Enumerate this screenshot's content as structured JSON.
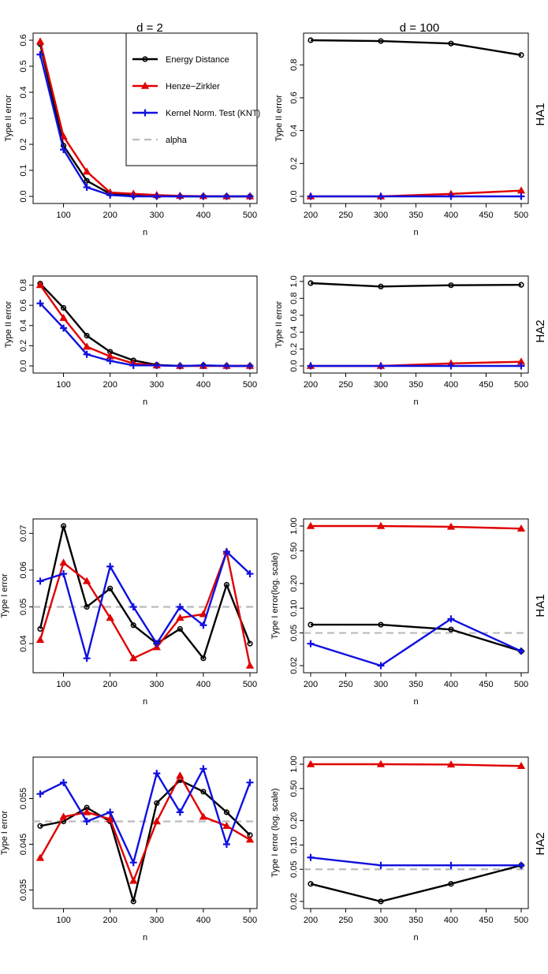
{
  "column_titles": [
    "d = 2",
    "d = 100"
  ],
  "row_labels": [
    "HA1",
    "HA2",
    "HA1",
    "HA2"
  ],
  "colors": {
    "energy": "#000000",
    "hz": "#e00000",
    "knt": "#1010e0",
    "alpha": "#bbbbbb"
  },
  "legend": {
    "entries": [
      {
        "key": "energy",
        "label": "Energy Distance",
        "marker": "circle"
      },
      {
        "key": "hz",
        "label": "Henze−Zirkler",
        "marker": "triangle"
      },
      {
        "key": "knt",
        "label": "Kernel Norm. Test (KNT)",
        "marker": "plus"
      },
      {
        "key": "alpha",
        "label": "alpha",
        "marker": "dash"
      }
    ]
  },
  "chart_data": [
    {
      "type": "line",
      "panel": "r0c0",
      "xlabel": "n",
      "ylabel": "Type II error",
      "xlim": [
        50,
        500
      ],
      "ylim": [
        0,
        0.6
      ],
      "log": false,
      "xticks": [
        100,
        200,
        300,
        400,
        500
      ],
      "xtick_labels": [
        "100",
        "200",
        "300",
        "400",
        "500"
      ],
      "yticks": [
        0,
        0.1,
        0.2,
        0.3,
        0.4,
        0.5,
        0.6
      ],
      "ytick_labels": [
        "0.0",
        "0.1",
        "0.2",
        "0.3",
        "0.4",
        "0.5",
        "0.6"
      ],
      "alpha_line": null,
      "has_legend": true,
      "x": [
        50,
        100,
        150,
        200,
        250,
        300,
        350,
        400,
        450,
        500
      ],
      "series": [
        {
          "key": "energy",
          "values": [
            0.585,
            0.195,
            0.06,
            0.01,
            0.003,
            0.001,
            0,
            0,
            0,
            0
          ]
        },
        {
          "key": "hz",
          "values": [
            0.595,
            0.23,
            0.095,
            0.015,
            0.01,
            0.005,
            0.002,
            0.001,
            0,
            0
          ]
        },
        {
          "key": "knt",
          "values": [
            0.545,
            0.18,
            0.035,
            0.005,
            0,
            0,
            0,
            0,
            0,
            0
          ]
        }
      ]
    },
    {
      "type": "line",
      "panel": "r0c1",
      "xlabel": "n",
      "ylabel": "Type II error",
      "xlim": [
        200,
        500
      ],
      "ylim": [
        0,
        0.95
      ],
      "log": false,
      "xticks": [
        200,
        250,
        300,
        350,
        400,
        450,
        500
      ],
      "xtick_labels": [
        "200",
        "250",
        "300",
        "350",
        "400",
        "450",
        "500"
      ],
      "yticks": [
        0,
        0.2,
        0.4,
        0.6,
        0.8
      ],
      "ytick_labels": [
        "0.0",
        "0.2",
        "0.4",
        "0.6",
        "0.8"
      ],
      "alpha_line": null,
      "has_legend": false,
      "x": [
        200,
        300,
        400,
        500
      ],
      "series": [
        {
          "key": "energy",
          "values": [
            0.95,
            0.945,
            0.93,
            0.86
          ]
        },
        {
          "key": "hz",
          "values": [
            0,
            0,
            0.015,
            0.035
          ]
        },
        {
          "key": "knt",
          "values": [
            0,
            0,
            0,
            0
          ]
        }
      ]
    },
    {
      "type": "line",
      "panel": "r1c0",
      "xlabel": "n",
      "ylabel": "Type II error",
      "xlim": [
        50,
        500
      ],
      "ylim": [
        0,
        0.82
      ],
      "log": false,
      "xticks": [
        100,
        200,
        300,
        400,
        500
      ],
      "xtick_labels": [
        "100",
        "200",
        "300",
        "400",
        "500"
      ],
      "yticks": [
        0,
        0.2,
        0.4,
        0.6,
        0.8
      ],
      "ytick_labels": [
        "0.0",
        "0.2",
        "0.4",
        "0.6",
        "0.8"
      ],
      "alpha_line": null,
      "has_legend": false,
      "x": [
        50,
        100,
        150,
        200,
        250,
        300,
        350,
        400,
        450,
        500
      ],
      "series": [
        {
          "key": "energy",
          "values": [
            0.815,
            0.575,
            0.3,
            0.14,
            0.055,
            0.01,
            0,
            0.005,
            0,
            0
          ]
        },
        {
          "key": "hz",
          "values": [
            0.8,
            0.475,
            0.19,
            0.095,
            0.025,
            0.005,
            0,
            0,
            0,
            0
          ]
        },
        {
          "key": "knt",
          "values": [
            0.62,
            0.375,
            0.115,
            0.05,
            0.005,
            0.005,
            0,
            0.005,
            0,
            0
          ]
        }
      ]
    },
    {
      "type": "line",
      "panel": "r1c1",
      "xlabel": "n",
      "ylabel": "Type II error",
      "xlim": [
        200,
        500
      ],
      "ylim": [
        0,
        0.98
      ],
      "log": false,
      "xticks": [
        200,
        250,
        300,
        350,
        400,
        450,
        500
      ],
      "xtick_labels": [
        "200",
        "250",
        "300",
        "350",
        "400",
        "450",
        "500"
      ],
      "yticks": [
        0,
        0.2,
        0.4,
        0.6,
        0.8,
        1.0
      ],
      "ytick_labels": [
        "0.0",
        "0.2",
        "0.4",
        "0.6",
        "0.8",
        "1.0"
      ],
      "alpha_line": null,
      "has_legend": false,
      "x": [
        200,
        300,
        400,
        500
      ],
      "series": [
        {
          "key": "energy",
          "values": [
            0.98,
            0.94,
            0.955,
            0.96
          ]
        },
        {
          "key": "hz",
          "values": [
            0,
            0,
            0.03,
            0.05
          ]
        },
        {
          "key": "knt",
          "values": [
            0,
            0,
            0,
            0
          ]
        }
      ]
    },
    {
      "type": "line",
      "panel": "r2c0",
      "xlabel": "n",
      "ylabel": "Type I error",
      "xlim": [
        50,
        500
      ],
      "ylim": [
        0.034,
        0.072
      ],
      "log": false,
      "xticks": [
        100,
        200,
        300,
        400,
        500
      ],
      "xtick_labels": [
        "100",
        "200",
        "300",
        "400",
        "500"
      ],
      "yticks": [
        0.04,
        0.05,
        0.06,
        0.07
      ],
      "ytick_labels": [
        "0.04",
        "0.05",
        "0.06",
        "0.07"
      ],
      "alpha_line": 0.05,
      "has_legend": false,
      "x": [
        50,
        100,
        150,
        200,
        250,
        300,
        350,
        400,
        450,
        500
      ],
      "series": [
        {
          "key": "energy",
          "values": [
            0.044,
            0.072,
            0.05,
            0.055,
            0.045,
            0.04,
            0.044,
            0.036,
            0.056,
            0.04
          ]
        },
        {
          "key": "hz",
          "values": [
            0.041,
            0.062,
            0.057,
            0.047,
            0.036,
            0.039,
            0.047,
            0.048,
            0.065,
            0.034
          ]
        },
        {
          "key": "knt",
          "values": [
            0.057,
            0.059,
            0.036,
            0.061,
            0.05,
            0.04,
            0.05,
            0.045,
            0.065,
            0.059
          ]
        }
      ]
    },
    {
      "type": "line",
      "panel": "r2c1",
      "xlabel": "n",
      "ylabel": "Type I error(log. scale)",
      "xlim": [
        200,
        500
      ],
      "ylim": [
        0.02,
        1.0
      ],
      "log": true,
      "xticks": [
        200,
        250,
        300,
        350,
        400,
        450,
        500
      ],
      "xtick_labels": [
        "200",
        "250",
        "300",
        "350",
        "400",
        "450",
        "500"
      ],
      "yticks": [
        0.02,
        0.05,
        0.1,
        0.2,
        0.5,
        1.0
      ],
      "ytick_labels": [
        "0.02",
        "0.05",
        "0.10",
        "0.20",
        "0.50",
        "1.00"
      ],
      "alpha_line": 0.05,
      "has_legend": false,
      "x": [
        200,
        300,
        400,
        500
      ],
      "series": [
        {
          "key": "energy",
          "values": [
            0.063,
            0.063,
            0.055,
            0.03
          ]
        },
        {
          "key": "hz",
          "values": [
            1.0,
            1.0,
            0.98,
            0.93
          ]
        },
        {
          "key": "knt",
          "values": [
            0.037,
            0.02,
            0.074,
            0.03
          ]
        }
      ]
    },
    {
      "type": "line",
      "panel": "r3c0",
      "xlabel": "n",
      "ylabel": "Type I error",
      "xlim": [
        50,
        500
      ],
      "ylim": [
        0.0325,
        0.0625
      ],
      "log": false,
      "xticks": [
        100,
        200,
        300,
        400,
        500
      ],
      "xtick_labels": [
        "100",
        "200",
        "300",
        "400",
        "500"
      ],
      "yticks": [
        0.035,
        0.045,
        0.055
      ],
      "ytick_labels": [
        "0.035",
        "0.045",
        "0.055"
      ],
      "alpha_line": 0.05,
      "has_legend": false,
      "x": [
        50,
        100,
        150,
        200,
        250,
        300,
        350,
        400,
        450,
        500
      ],
      "series": [
        {
          "key": "energy",
          "values": [
            0.049,
            0.05,
            0.053,
            0.05,
            0.0325,
            0.054,
            0.059,
            0.0565,
            0.052,
            0.047
          ]
        },
        {
          "key": "hz",
          "values": [
            0.042,
            0.051,
            0.052,
            0.0505,
            0.037,
            0.05,
            0.06,
            0.051,
            0.049,
            0.046
          ]
        },
        {
          "key": "knt",
          "values": [
            0.056,
            0.0585,
            0.05,
            0.052,
            0.041,
            0.0605,
            0.052,
            0.0615,
            0.045,
            0.0585
          ]
        }
      ]
    },
    {
      "type": "line",
      "panel": "r3c1",
      "xlabel": "n",
      "ylabel": "Type I error (log. scale)",
      "xlim": [
        200,
        500
      ],
      "ylim": [
        0.02,
        1.0
      ],
      "log": true,
      "xticks": [
        200,
        250,
        300,
        350,
        400,
        450,
        500
      ],
      "xtick_labels": [
        "200",
        "250",
        "300",
        "350",
        "400",
        "450",
        "500"
      ],
      "yticks": [
        0.02,
        0.05,
        0.1,
        0.2,
        0.5,
        1.0
      ],
      "ytick_labels": [
        "0.02",
        "0.05",
        "0.10",
        "0.20",
        "0.50",
        "1.00"
      ],
      "alpha_line": 0.05,
      "has_legend": false,
      "x": [
        200,
        300,
        400,
        500
      ],
      "series": [
        {
          "key": "energy",
          "values": [
            0.033,
            0.02,
            0.033,
            0.056
          ]
        },
        {
          "key": "hz",
          "values": [
            1.0,
            1.0,
            0.99,
            0.95
          ]
        },
        {
          "key": "knt",
          "values": [
            0.07,
            0.056,
            0.056,
            0.056
          ]
        }
      ]
    }
  ]
}
